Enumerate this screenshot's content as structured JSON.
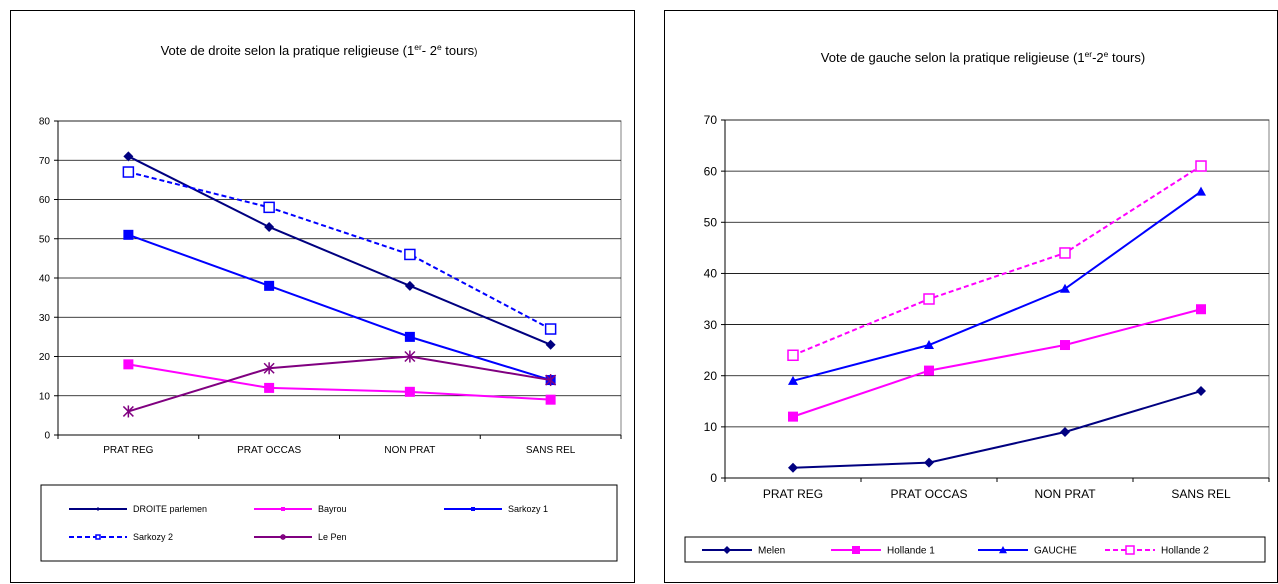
{
  "chart_data": [
    {
      "type": "line",
      "title_main": "Vote de droite selon la pratique religieuse (1",
      "title_sup1": "er",
      "title_mid": "- 2",
      "title_sup2": "e",
      "title_end": " tours",
      "title_paren": ")",
      "categories": [
        "PRAT REG",
        "PRAT OCCAS",
        "NON PRAT",
        "SANS REL"
      ],
      "ylim": [
        0,
        80
      ],
      "yticks": [
        "0",
        "10",
        "20",
        "30",
        "40",
        "50",
        "60",
        "70",
        "80"
      ],
      "grid": true,
      "legend_position": "bottom",
      "series": [
        {
          "name": "DROITE  parlemen",
          "values": [
            71,
            53,
            38,
            23
          ],
          "color": "#000080",
          "marker": "diamond",
          "dashed": false
        },
        {
          "name": "Bayrou",
          "values": [
            18,
            12,
            11,
            9
          ],
          "color": "#ff00ff",
          "marker": "square",
          "dashed": false
        },
        {
          "name": "Sarkozy 1",
          "values": [
            51,
            38,
            25,
            14
          ],
          "color": "#0000ff",
          "marker": "square",
          "dashed": false
        },
        {
          "name": "Sarkozy 2",
          "values": [
            67,
            58,
            46,
            27
          ],
          "color": "#0000ff",
          "marker": "open-square",
          "dashed": true
        },
        {
          "name": "Le Pen",
          "values": [
            6,
            17,
            20,
            14
          ],
          "color": "#800080",
          "marker": "star",
          "dashed": false
        }
      ]
    },
    {
      "type": "line",
      "title_main": "Vote de gauche selon la pratique religieuse (1",
      "title_sup1": "er",
      "title_mid": "-2",
      "title_sup2": "e",
      "title_end": " tours)",
      "title_paren": "",
      "categories": [
        "PRAT REG",
        "PRAT OCCAS",
        "NON PRAT",
        "SANS REL"
      ],
      "ylim": [
        0,
        70
      ],
      "yticks": [
        "0",
        "10",
        "20",
        "30",
        "40",
        "50",
        "60",
        "70"
      ],
      "grid": true,
      "legend_position": "bottom",
      "series": [
        {
          "name": "Melen",
          "values": [
            2,
            3,
            9,
            17
          ],
          "color": "#000080",
          "marker": "diamond",
          "dashed": false
        },
        {
          "name": "Hollande 1",
          "values": [
            12,
            21,
            26,
            33
          ],
          "color": "#ff00ff",
          "marker": "square",
          "dashed": false
        },
        {
          "name": "GAUCHE",
          "values": [
            19,
            26,
            37,
            56
          ],
          "color": "#0000ff",
          "marker": "triangle",
          "dashed": false
        },
        {
          "name": "Hollande 2",
          "values": [
            24,
            35,
            44,
            61
          ],
          "color": "#ff00ff",
          "marker": "open-square",
          "dashed": true
        }
      ]
    }
  ]
}
